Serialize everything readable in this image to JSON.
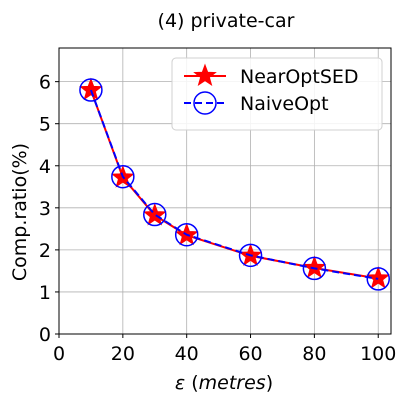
{
  "chart_data": {
    "type": "line",
    "title": "(4) private-car",
    "xlabel": "ε (metres)",
    "xlabel_symbol": "ε",
    "xlabel_unit": "metres",
    "ylabel": "Comp.ratio(%)",
    "xlim": [
      0,
      104
    ],
    "ylim": [
      0,
      6.8
    ],
    "xticks": [
      0,
      20,
      40,
      60,
      80,
      100
    ],
    "yticks": [
      0,
      1,
      2,
      3,
      4,
      5,
      6
    ],
    "grid": true,
    "legend_position": "upper-right",
    "x": [
      10,
      20,
      30,
      40,
      60,
      80,
      100
    ],
    "series": [
      {
        "name": "NearOptSED",
        "values": [
          5.8,
          3.72,
          2.82,
          2.35,
          1.86,
          1.57,
          1.32
        ],
        "color": "#ff0000",
        "line": "solid",
        "marker": "star-filled"
      },
      {
        "name": "NaiveOpt",
        "values": [
          5.8,
          3.74,
          2.84,
          2.36,
          1.87,
          1.56,
          1.31
        ],
        "color": "#0000ff",
        "line": "dashed",
        "marker": "circle-open"
      }
    ]
  }
}
